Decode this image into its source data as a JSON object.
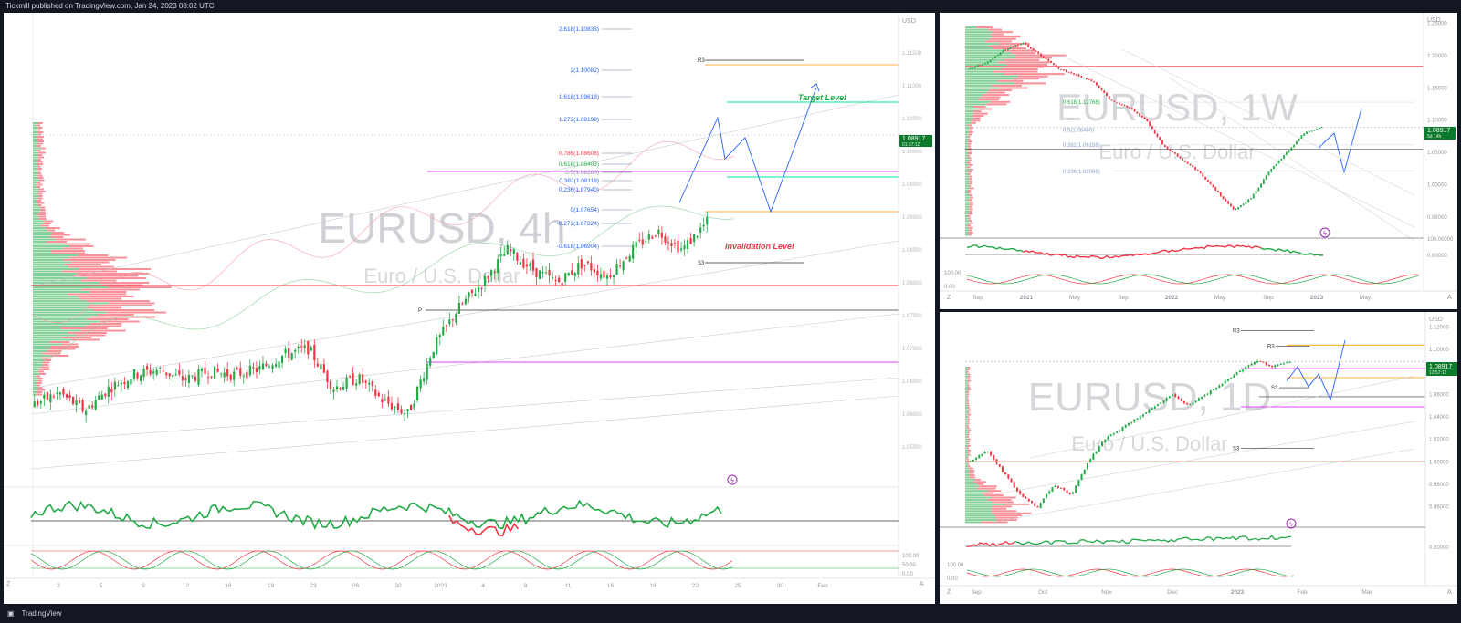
{
  "header": {
    "publish_text": "Tickmill published on TradingView.com, Jan 24, 2023 08:02 UTC"
  },
  "footer": {
    "brand": "TradingView"
  },
  "chart_data": [
    {
      "type": "candlestick",
      "panel": "main",
      "watermark_symbol": "EURUSD, 4h",
      "watermark_desc": "Euro / U.S. Dollar",
      "currency_label": "USD",
      "price_range": [
        1.05,
        1.12
      ],
      "last_price": "1.08917",
      "countdown": "01:57:12",
      "x_ticks": [
        "2",
        "5",
        "9",
        "12",
        "16",
        "19",
        "23",
        "26",
        "30",
        "2023",
        "4",
        "9",
        "11",
        "16",
        "18",
        "22",
        "25",
        "30",
        "Feb"
      ],
      "fib_levels": [
        {
          "label": "2.618(1.10833)",
          "price": 1.10833
        },
        {
          "label": "2(1.10082)",
          "price": 1.10082
        },
        {
          "label": "1.618(1.09618)",
          "price": 1.09618
        },
        {
          "label": "1.272(1.09198)",
          "price": 1.09198
        },
        {
          "label": "0.786(1.08608)",
          "price": 1.08608
        },
        {
          "label": "0.618(1.08403)",
          "price": 1.08403
        },
        {
          "label": "0.5(1.08260)",
          "price": 1.0826
        },
        {
          "label": "0.382(1.08118)",
          "price": 1.08118
        },
        {
          "label": "0.236(1.07940)",
          "price": 1.0794
        },
        {
          "label": "0(1.07654)",
          "price": 1.07654
        },
        {
          "label": "-0.272(1.07324)",
          "price": 1.07324
        },
        {
          "label": "-0.618(1.06904)",
          "price": 1.06904
        }
      ],
      "pivots": [
        {
          "label": "R3",
          "price": 1.1
        },
        {
          "label": "P",
          "price": 1.0785
        },
        {
          "label": "S3",
          "price": 1.0665
        }
      ],
      "annotations": [
        {
          "text": "Target Level",
          "color": "#22ab46"
        },
        {
          "text": "Invalidation Level",
          "color": "#f23645"
        }
      ],
      "oscillator_ticks": [
        "100.00",
        "50.00",
        "0.00"
      ]
    },
    {
      "type": "candlestick",
      "panel": "weekly",
      "watermark_symbol": "EURUSD, 1W",
      "watermark_desc": "Euro / U.S. Dollar",
      "currency_label": "USD",
      "price_ticks": [
        "1.25000",
        "1.20000",
        "1.15000",
        "1.10000",
        "1.05000",
        "1.00000",
        "0.95000"
      ],
      "last_price": "1.08917",
      "countdown": "5d 14h",
      "x_ticks": [
        "Sep",
        "2021",
        "May",
        "Sep",
        "2022",
        "May",
        "Sep",
        "2023",
        "May"
      ],
      "fib_labels": [
        "0.618(1.12768)",
        "0.5(1.08480)",
        "0.382(1.06156)",
        "0.236(1.02066)"
      ],
      "indicator_ticks": [
        "100.00000",
        "0.00000"
      ],
      "oscillator_ticks": [
        "100.00",
        "0.00"
      ]
    },
    {
      "type": "candlestick",
      "panel": "daily",
      "watermark_symbol": "EURUSD, 1D",
      "watermark_desc": "Euro / U.S. Dollar",
      "currency_label": "USD",
      "price_ticks": [
        "1.12000",
        "1.10000",
        "1.08000",
        "1.06000",
        "1.04000",
        "1.02000",
        "1.00000",
        "0.98000",
        "0.96000"
      ],
      "last_price": "1.08917",
      "countdown": "13:57:12",
      "x_ticks": [
        "Sep",
        "Oct",
        "Nov",
        "Dec",
        "2023",
        "Feb",
        "Mar"
      ],
      "pivots": [
        {
          "label": "R3",
          "price": 1.117
        },
        {
          "label": "R3",
          "price": 1.103
        },
        {
          "label": "S3",
          "price": 1.066
        },
        {
          "label": "S3",
          "price": 1.012
        }
      ],
      "indicator_ticks": [
        "0.00000"
      ],
      "oscillator_ticks": [
        "100.00",
        "0.00"
      ]
    }
  ],
  "colors": {
    "up": "#22ab46",
    "down": "#f23645",
    "fib_label": "#2962ff",
    "pink": "#e040fb",
    "orange": "#ff9800",
    "teal": "#00e5a0"
  }
}
